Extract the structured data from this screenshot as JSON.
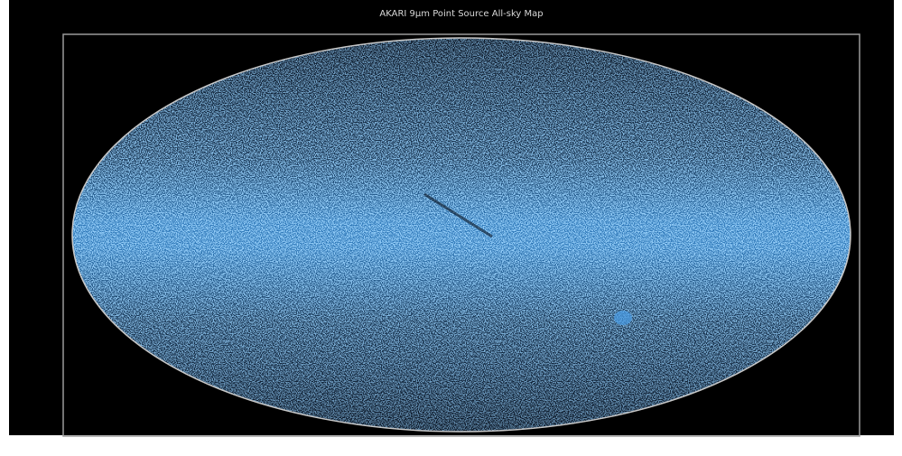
{
  "title": "AKARI 9μm Point Source All-sky Map"
}
